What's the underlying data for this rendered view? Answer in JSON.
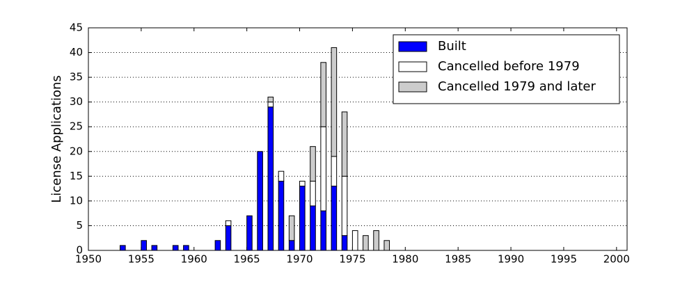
{
  "chart_data": {
    "type": "stacked_bar",
    "y_label": "License Applications",
    "x": [
      1951,
      1952,
      1953,
      1954,
      1955,
      1956,
      1957,
      1958,
      1959,
      1960,
      1961,
      1962,
      1963,
      1964,
      1965,
      1966,
      1967,
      1968,
      1969,
      1970,
      1971,
      1972,
      1973,
      1974,
      1975,
      1976,
      1977,
      1978,
      1979,
      1980,
      1981,
      1982,
      1983,
      1984,
      1985,
      1986,
      1987,
      1988,
      1989,
      1990,
      1991,
      1992,
      1993,
      1994,
      1995,
      1996,
      1997,
      1998,
      1999,
      2000
    ],
    "series": [
      {
        "name": "Built",
        "color": "#0000ff",
        "values": [
          0,
          0,
          1,
          0,
          2,
          1,
          0,
          1,
          1,
          0,
          0,
          2,
          5,
          0,
          7,
          20,
          29,
          14,
          2,
          13,
          9,
          8,
          13,
          3,
          0,
          0,
          0,
          0,
          0,
          0,
          0,
          0,
          0,
          0,
          0,
          0,
          0,
          0,
          0,
          0,
          0,
          0,
          0,
          0,
          0,
          0,
          0,
          0,
          0,
          0
        ]
      },
      {
        "name": "Cancelled before 1979",
        "color": "#ffffff",
        "values": [
          0,
          0,
          0,
          0,
          0,
          0,
          0,
          0,
          0,
          0,
          0,
          0,
          1,
          0,
          0,
          0,
          1,
          2,
          0,
          1,
          5,
          17,
          6,
          12,
          4,
          0,
          0,
          0,
          0,
          0,
          0,
          0,
          0,
          0,
          0,
          0,
          0,
          0,
          0,
          0,
          0,
          0,
          0,
          0,
          0,
          0,
          0,
          0,
          0,
          0
        ]
      },
      {
        "name": "Cancelled 1979 and later",
        "color": "#cccccc",
        "values": [
          0,
          0,
          0,
          0,
          0,
          0,
          0,
          0,
          0,
          0,
          0,
          0,
          0,
          0,
          0,
          0,
          1,
          0,
          5,
          0,
          7,
          13,
          22,
          13,
          0,
          3,
          4,
          2,
          0,
          0,
          0,
          0,
          0,
          0,
          0,
          0,
          0,
          0,
          0,
          0,
          0,
          0,
          0,
          0,
          0,
          0,
          0,
          0,
          0,
          0
        ]
      }
    ],
    "xlim": [
      1950,
      2001
    ],
    "xticks": [
      1950,
      1955,
      1960,
      1965,
      1970,
      1975,
      1980,
      1985,
      1990,
      1995,
      2000
    ],
    "ylim": [
      0,
      45
    ],
    "yticks": [
      0,
      5,
      10,
      15,
      20,
      25,
      30,
      35,
      40,
      45
    ],
    "grid": true,
    "legend": "upper right"
  }
}
